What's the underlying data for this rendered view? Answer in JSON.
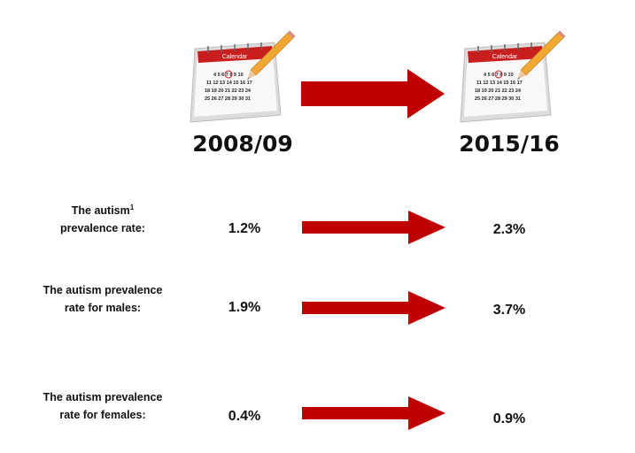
{
  "colors": {
    "arrow": "#c00000",
    "calendar_header": "#c81e1e",
    "pencil": "#f0a830"
  },
  "calendar": {
    "header": "Calendar",
    "rows": [
      "4 5 6 7 8 9 10",
      "11 12 13 14 15 16 17",
      "18 19 20 21 22 23 24",
      "25 26 27 28 29 30 31"
    ]
  },
  "periods": {
    "from": "2008/09",
    "to": "2015/16"
  },
  "rows": [
    {
      "label_lines": [
        "The autism",
        "prevalence rate:"
      ],
      "footnote": "1",
      "from": "1.2%",
      "to": "2.3%"
    },
    {
      "label_lines": [
        "The autism prevalence",
        "rate for males:"
      ],
      "from": "1.9%",
      "to": "3.7%"
    },
    {
      "label_lines": [
        "The autism prevalence",
        "rate for females:"
      ],
      "from": "0.4%",
      "to": "0.9%"
    }
  ]
}
